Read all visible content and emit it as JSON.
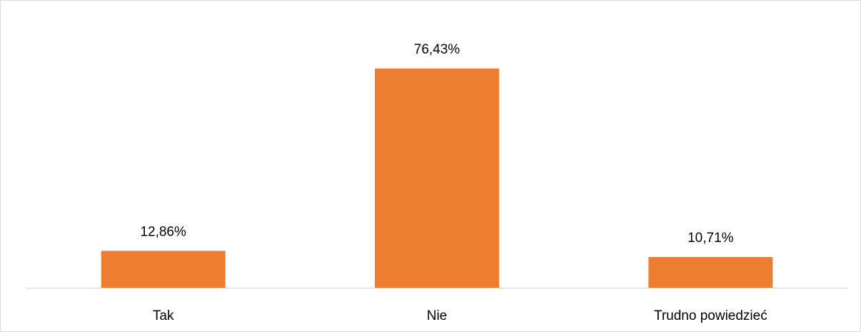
{
  "chart_data": {
    "type": "bar",
    "categories": [
      "Tak",
      "Nie",
      "Trudno powiedzieć"
    ],
    "values": [
      12.86,
      76.43,
      10.71
    ],
    "value_labels": [
      "12,86%",
      "76,43%",
      "10,71%"
    ],
    "color": "#ed7d31"
  }
}
